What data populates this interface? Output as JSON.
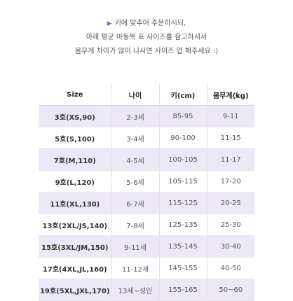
{
  "notice": {
    "line1": "키에 맞추어 주문하시되,",
    "line2": "아래 평균 아동복 표 사이즈를 참고하셔서",
    "line3": "몸무게 차이가 많이 나시면 사이즈 업 해주세요 :)",
    "arrow_icon": "triangle-right-icon"
  },
  "table": {
    "headers": [
      "Size",
      "나이",
      "키(cm)",
      "몸무게(kg)"
    ],
    "rows": [
      {
        "size": "3호(XS,90)",
        "age": "2-3세",
        "height": "85-95",
        "weight": "9-11"
      },
      {
        "size": "5호(S,100)",
        "age": "3-4세",
        "height": "90-100",
        "weight": "11-15"
      },
      {
        "size": "7호(M,110)",
        "age": "4-5세",
        "height": "100-105",
        "weight": "11-17"
      },
      {
        "size": "9호(L,120)",
        "age": "5-6세",
        "height": "105-115",
        "weight": "17-20"
      },
      {
        "size": "11호(XL,130)",
        "age": "6-7세",
        "height": "115-125",
        "weight": "20-25"
      },
      {
        "size": "13호(2XL/JS,140)",
        "age": "7-8세",
        "height": "125-135",
        "weight": "25-30"
      },
      {
        "size": "15호(3XL/JM,150)",
        "age": "9-11세",
        "height": "135-145",
        "weight": "30-40"
      },
      {
        "size": "17호(4XL,JL,160)",
        "age": "11-12세",
        "height": "145-155",
        "weight": "40-50"
      },
      {
        "size": "19호(5XL,JXL,170)",
        "age": "13세~성인",
        "height": "155-165",
        "weight": "50~60"
      }
    ]
  },
  "colors": {
    "shaded_row": "#ece8f7",
    "accent": "#8a5cc4"
  }
}
